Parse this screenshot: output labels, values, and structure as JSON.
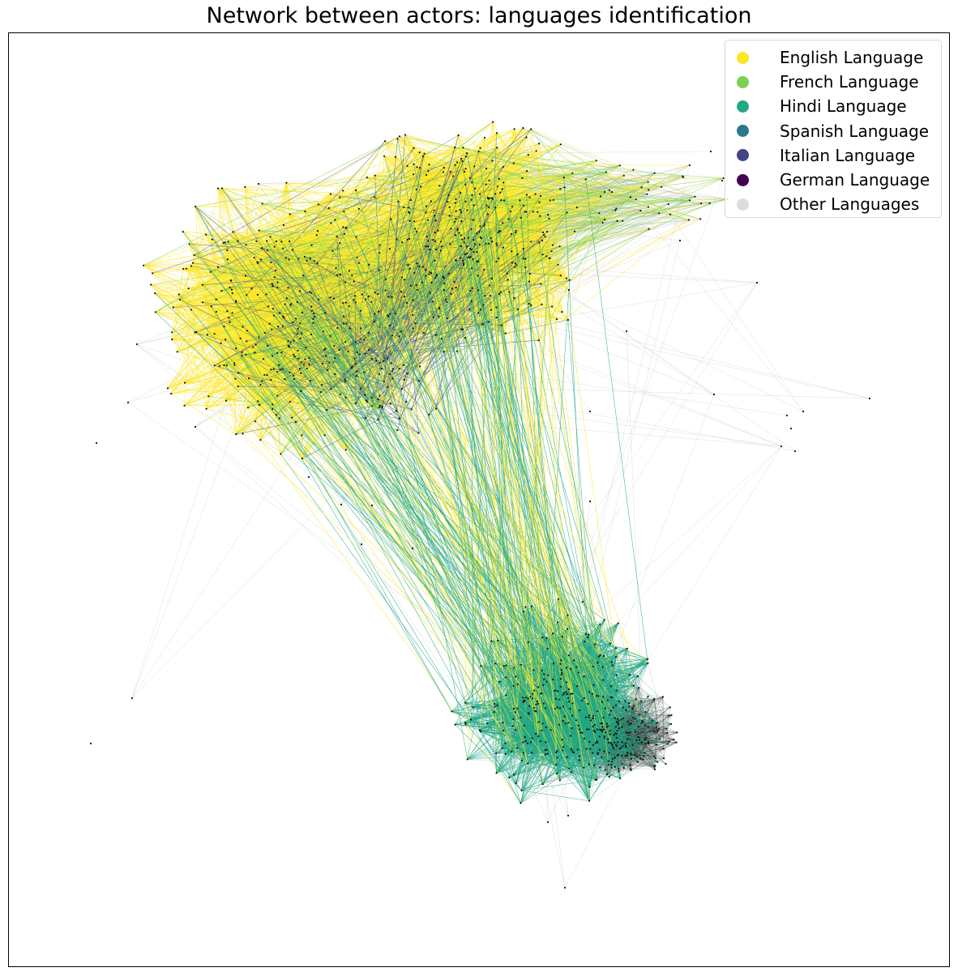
{
  "title": "Network between actors: languages identification",
  "chart_data": {
    "type": "network",
    "legend_position": "top-right",
    "axes_ticks": false,
    "node_color": "#111111",
    "legend": [
      {
        "label": "English Language",
        "color": "#fde725"
      },
      {
        "label": "French Language",
        "color": "#7ad151"
      },
      {
        "label": "Hindi Language",
        "color": "#22a884"
      },
      {
        "label": "Spanish Language",
        "color": "#2a788e"
      },
      {
        "label": "Italian Language",
        "color": "#414487"
      },
      {
        "label": "German Language",
        "color": "#440154"
      },
      {
        "label": "Other Languages",
        "color": "#dddddd"
      }
    ]
  }
}
